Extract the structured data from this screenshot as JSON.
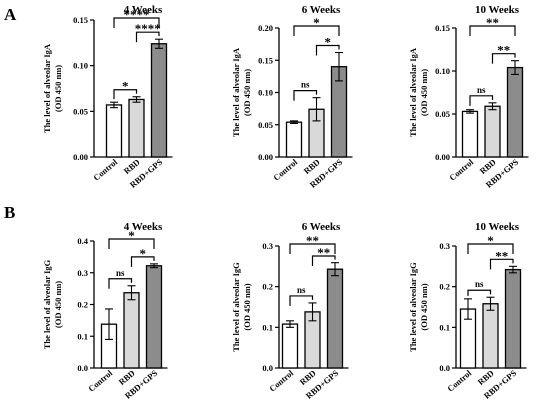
{
  "panels": [
    {
      "letter": "A"
    },
    {
      "letter": "B"
    }
  ],
  "chart_data": [
    {
      "type": "bar",
      "title": "4 Weeks",
      "ylabel": "The level of alveolar IgA\n(OD 450 nm)",
      "categories": [
        "Control",
        "RBD",
        "RBD+GPS"
      ],
      "values": [
        0.057,
        0.063,
        0.124
      ],
      "errors": [
        0.003,
        0.003,
        0.005
      ],
      "ylim": [
        0,
        0.15
      ],
      "yticks": [
        "0.00",
        "0.05",
        "0.10",
        "0.15"
      ],
      "bar_colors": [
        "#ffffff",
        "#d9d9d9",
        "#8c8c8c"
      ],
      "significance": [
        {
          "from": 0,
          "to": 1,
          "label": "*"
        },
        {
          "from": 1,
          "to": 2,
          "label": "****"
        },
        {
          "from": 0,
          "to": 2,
          "label": "****"
        }
      ]
    },
    {
      "type": "bar",
      "title": "6 Weeks",
      "ylabel": "The level of alveolar IgA\n(OD 450 nm)",
      "categories": [
        "Control",
        "RBD",
        "RBD+GPS"
      ],
      "values": [
        0.054,
        0.074,
        0.14
      ],
      "errors": [
        0.002,
        0.018,
        0.022
      ],
      "ylim": [
        0,
        0.2
      ],
      "yticks": [
        "0.00",
        "0.05",
        "0.10",
        "0.15",
        "0.20"
      ],
      "bar_colors": [
        "#ffffff",
        "#d9d9d9",
        "#8c8c8c"
      ],
      "significance": [
        {
          "from": 0,
          "to": 1,
          "label": "ns"
        },
        {
          "from": 1,
          "to": 2,
          "label": "*"
        },
        {
          "from": 0,
          "to": 2,
          "label": "*"
        }
      ]
    },
    {
      "type": "bar",
      "title": "10 Weeks",
      "ylabel": "The level of alveolar IgA\n(OD 450 nm)",
      "categories": [
        "Control",
        "RBD",
        "RBD+GPS"
      ],
      "values": [
        0.053,
        0.059,
        0.104
      ],
      "errors": [
        0.002,
        0.004,
        0.008
      ],
      "ylim": [
        0,
        0.15
      ],
      "yticks": [
        "0.00",
        "0.05",
        "0.10",
        "0.15"
      ],
      "bar_colors": [
        "#ffffff",
        "#d9d9d9",
        "#8c8c8c"
      ],
      "significance": [
        {
          "from": 0,
          "to": 1,
          "label": "ns"
        },
        {
          "from": 1,
          "to": 2,
          "label": "**"
        },
        {
          "from": 0,
          "to": 2,
          "label": "**"
        }
      ]
    },
    {
      "type": "bar",
      "title": "4 Weeks",
      "ylabel": "The level of alveolar IgG\n(OD 450 nm)",
      "categories": [
        "Control",
        "RBD",
        "RBD+GPS"
      ],
      "values": [
        0.138,
        0.237,
        0.322
      ],
      "errors": [
        0.048,
        0.022,
        0.006
      ],
      "ylim": [
        0,
        0.4
      ],
      "yticks": [
        "0.0",
        "0.1",
        "0.2",
        "0.3",
        "0.4"
      ],
      "bar_colors": [
        "#ffffff",
        "#d9d9d9",
        "#8c8c8c"
      ],
      "significance": [
        {
          "from": 0,
          "to": 1,
          "label": "ns"
        },
        {
          "from": 1,
          "to": 2,
          "label": "*"
        },
        {
          "from": 0,
          "to": 2,
          "label": "*"
        }
      ]
    },
    {
      "type": "bar",
      "title": "6 Weeks",
      "ylabel": "The level of alveolar IgG\n(OD 450 nm)",
      "categories": [
        "Control",
        "RBD",
        "RBD+GPS"
      ],
      "values": [
        0.108,
        0.138,
        0.243
      ],
      "errors": [
        0.008,
        0.022,
        0.016
      ],
      "ylim": [
        0,
        0.3
      ],
      "yticks": [
        "0.0",
        "0.1",
        "0.2",
        "0.3"
      ],
      "bar_colors": [
        "#ffffff",
        "#d9d9d9",
        "#8c8c8c"
      ],
      "significance": [
        {
          "from": 0,
          "to": 1,
          "label": "ns"
        },
        {
          "from": 1,
          "to": 2,
          "label": "**"
        },
        {
          "from": 0,
          "to": 2,
          "label": "**"
        }
      ]
    },
    {
      "type": "bar",
      "title": "10 Weeks",
      "ylabel": "The level of alveolar IgG\n(OD 450 nm)",
      "categories": [
        "Control",
        "RBD",
        "RBD+GPS"
      ],
      "values": [
        0.145,
        0.158,
        0.242
      ],
      "errors": [
        0.025,
        0.016,
        0.008
      ],
      "ylim": [
        0,
        0.3
      ],
      "yticks": [
        "0.0",
        "0.1",
        "0.2",
        "0.3"
      ],
      "bar_colors": [
        "#ffffff",
        "#d9d9d9",
        "#8c8c8c"
      ],
      "significance": [
        {
          "from": 0,
          "to": 1,
          "label": "ns"
        },
        {
          "from": 1,
          "to": 2,
          "label": "**"
        },
        {
          "from": 0,
          "to": 2,
          "label": "*"
        }
      ]
    }
  ]
}
